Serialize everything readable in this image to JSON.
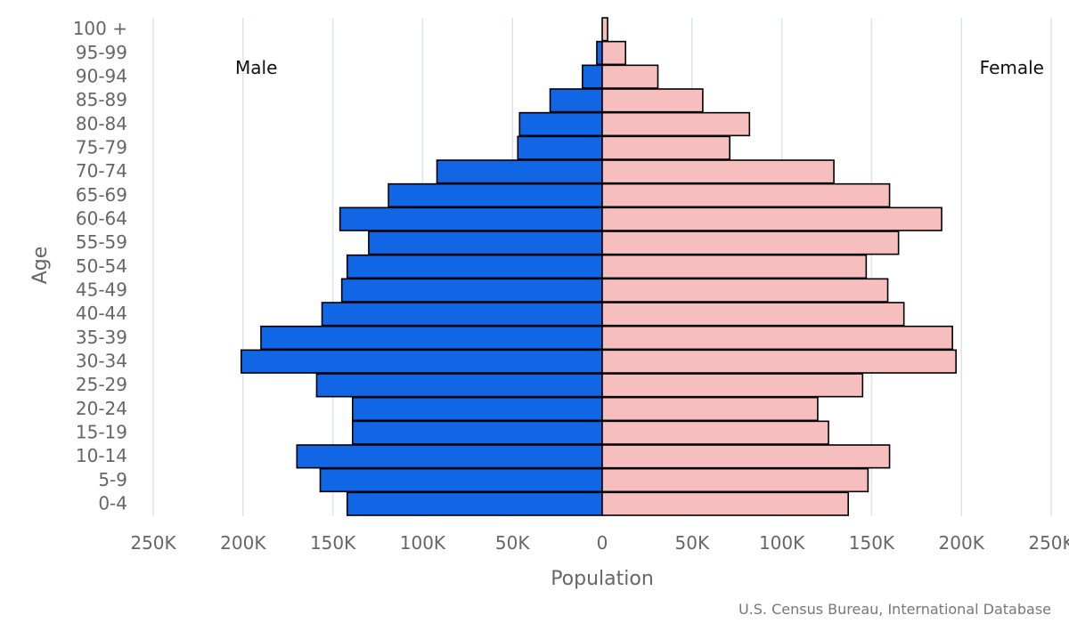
{
  "chart_data": {
    "type": "bar",
    "orientation": "horizontal",
    "diverging": true,
    "categories": [
      "0-4",
      "5-9",
      "10-14",
      "15-19",
      "20-24",
      "25-29",
      "30-34",
      "35-39",
      "40-44",
      "45-49",
      "50-54",
      "55-59",
      "60-64",
      "65-69",
      "70-74",
      "75-79",
      "80-84",
      "85-89",
      "90-94",
      "95-99",
      "100 +"
    ],
    "series": [
      {
        "name": "Male",
        "color": "#1166e6",
        "side": "left",
        "values": [
          142000,
          157000,
          170000,
          139000,
          139000,
          159000,
          201000,
          190000,
          156000,
          145000,
          142000,
          130000,
          146000,
          119000,
          92000,
          47000,
          46000,
          29000,
          11000,
          3000,
          0
        ]
      },
      {
        "name": "Female",
        "color": "#f7bebe",
        "side": "right",
        "values": [
          137000,
          148000,
          160000,
          126000,
          120000,
          145000,
          197000,
          195000,
          168000,
          159000,
          147000,
          165000,
          189000,
          160000,
          129000,
          71000,
          82000,
          56000,
          31000,
          13000,
          3000
        ]
      }
    ],
    "xlabel": "Population",
    "ylabel": "Age",
    "xlim": [
      -250000,
      250000
    ],
    "x_ticks": [
      -250000,
      -200000,
      -150000,
      -100000,
      -50000,
      0,
      50000,
      100000,
      150000,
      200000,
      250000
    ],
    "x_tick_labels": [
      "250K",
      "200K",
      "150K",
      "100K",
      "50K",
      "0",
      "50K",
      "100K",
      "150K",
      "200K",
      "250K"
    ],
    "grid": true,
    "legend": {
      "placement": "top-inside-both-sides"
    },
    "credit": "U.S. Census Bureau, International Database"
  }
}
